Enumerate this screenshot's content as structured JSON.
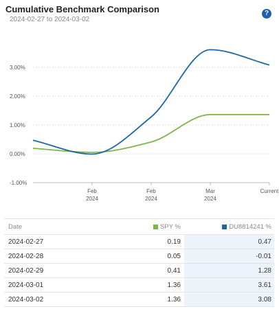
{
  "header": {
    "title": "Cumulative Benchmark Comparison",
    "date_range": "2024-02-27 to 2024-03-02",
    "help_icon": "question-circle-icon",
    "help_glyph": "?"
  },
  "chart_data": {
    "type": "line",
    "x": [
      "2024-02-27",
      "2024-02-28",
      "2024-02-29",
      "2024-03-01",
      "2024-03-02"
    ],
    "series": [
      {
        "name": "SPY %",
        "color": "#7ab648",
        "values": [
          0.19,
          0.05,
          0.41,
          1.36,
          1.36
        ]
      },
      {
        "name": "DU8814241 %",
        "color": "#1b67a8",
        "values": [
          0.47,
          -0.01,
          1.28,
          3.61,
          3.08
        ]
      }
    ],
    "ylim": [
      -1,
      4
    ],
    "yticks": [
      -1,
      0,
      1,
      2,
      3
    ],
    "ytick_labels": [
      "-1.00%",
      "0.00%",
      "1.00%",
      "2.00%",
      "3.00%"
    ],
    "xticks": [
      {
        "x": "2024-02-28",
        "line1": "Feb",
        "line2": "2024"
      },
      {
        "x": "2024-02-29",
        "line1": "Feb",
        "line2": "2024"
      },
      {
        "x": "2024-03-01",
        "line1": "Mar",
        "line2": "2024"
      },
      {
        "x": "2024-03-02",
        "line1": "Current",
        "line2": ""
      }
    ],
    "grid": true,
    "legend": "none"
  },
  "table": {
    "headers": {
      "date": "Date",
      "s1": "SPY %",
      "s2": "DU8814241 %"
    },
    "rows": [
      {
        "date": "2024-02-27",
        "s1": "0.19",
        "s2": "0.47"
      },
      {
        "date": "2024-02-28",
        "s1": "0.05",
        "s2": "-0.01"
      },
      {
        "date": "2024-02-29",
        "s1": "0.41",
        "s2": "1.28"
      },
      {
        "date": "2024-03-01",
        "s1": "1.36",
        "s2": "3.61"
      },
      {
        "date": "2024-03-02",
        "s1": "1.36",
        "s2": "3.08"
      }
    ]
  }
}
